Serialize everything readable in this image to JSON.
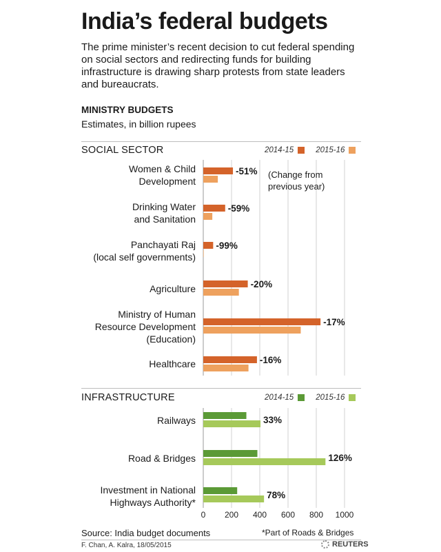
{
  "header": {
    "title": "India’s federal budgets",
    "intro": "The prime minister’s recent decision to cut federal spending on social sectors and redirecting funds for building infrastructure is drawing sharp protests from state leaders and bureaucrats.",
    "subhead": "MINISTRY BUDGETS",
    "units": "Estimates, in billion rupees"
  },
  "colors": {
    "social_2014": "#d4632a",
    "social_2015": "#eea15e",
    "infra_2014": "#5b9a36",
    "infra_2015": "#a6c95a",
    "grid": "#d0d0d0",
    "text": "#1a1a1a"
  },
  "sections": {
    "social": {
      "title": "SOCIAL SECTOR",
      "legend_a": "2014-15",
      "legend_b": "2015-16"
    },
    "infra": {
      "title": "INFRASTRUCTURE",
      "legend_a": "2014-15",
      "legend_b": "2015-16"
    }
  },
  "categories": {
    "women": [
      "Women & Child",
      "Development"
    ],
    "water": [
      "Drinking Water",
      "and Sanitation"
    ],
    "panchayati": [
      "Panchayati Raj",
      "(local self governments)"
    ],
    "agriculture": [
      "Agriculture"
    ],
    "hrd": [
      "Ministry of Human",
      "Resource Development",
      "(Education)"
    ],
    "health": [
      "Healthcare"
    ],
    "railways": [
      "Railways"
    ],
    "roads": [
      "Road & Bridges"
    ],
    "highways": [
      "Investment in National",
      "Highways Authority*"
    ]
  },
  "annotation": [
    "(Change from",
    "previous year)"
  ],
  "chart_data": {
    "type": "bar",
    "orientation": "horizontal",
    "title": "MINISTRY BUDGETS",
    "subtitle": "Estimates, in billion rupees",
    "xlim": [
      0,
      1000
    ],
    "xticks": [
      "0",
      "200",
      "400",
      "600",
      "800",
      "1000"
    ],
    "grid": true,
    "panels": [
      {
        "name": "SOCIAL SECTOR",
        "categories": [
          "Women & Child Development",
          "Drinking Water and Sanitation",
          "Panchayati Raj (local self governments)",
          "Agriculture",
          "Ministry of Human Resource Development (Education)",
          "Healthcare"
        ],
        "series": [
          {
            "name": "2014-15",
            "values": [
              210,
              155,
              70,
              315,
              830,
              380
            ]
          },
          {
            "name": "2015-16",
            "values": [
              103,
              64,
              1,
              252,
              690,
              320
            ]
          }
        ],
        "change_labels": [
          "-51%",
          "-59%",
          "-99%",
          "-20%",
          "-17%",
          "-16%"
        ]
      },
      {
        "name": "INFRASTRUCTURE",
        "categories": [
          "Railways",
          "Road & Bridges",
          "Investment in National Highways Authority*"
        ],
        "series": [
          {
            "name": "2014-15",
            "values": [
              305,
              383,
              240
            ]
          },
          {
            "name": "2015-16",
            "values": [
              405,
              865,
              430
            ]
          }
        ],
        "change_labels": [
          "33%",
          "126%",
          "78%"
        ]
      }
    ]
  },
  "footer": {
    "source": "Source: India budget documents",
    "note": "*Part of Roads & Bridges",
    "credit": "F. Chan, A. Kalra, 18/05/2015",
    "agency": "REUTERS"
  }
}
